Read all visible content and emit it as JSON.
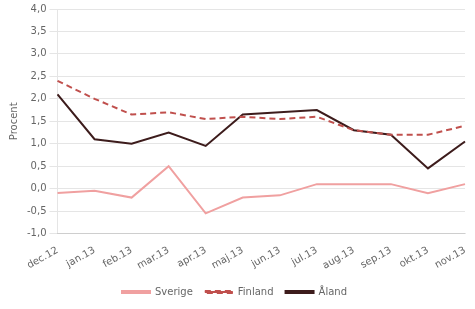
{
  "chart_data": {
    "type": "line",
    "ylabel": "Procent",
    "categories": [
      "dec.12",
      "jan.13",
      "feb.13",
      "mar.13",
      "apr.13",
      "maj.13",
      "jun.13",
      "jul.13",
      "aug.13",
      "sep.13",
      "okt.13",
      "nov.13"
    ],
    "series": [
      {
        "name": "Sverige",
        "color": "#f0a0a0",
        "line_style": "solid",
        "values": [
          -0.1,
          -0.05,
          -0.2,
          0.5,
          -0.55,
          -0.2,
          -0.15,
          0.1,
          0.1,
          0.1,
          -0.1,
          0.1
        ]
      },
      {
        "name": "Finland",
        "color": "#c0504d",
        "line_style": "dashed",
        "values": [
          2.4,
          2.0,
          1.65,
          1.7,
          1.55,
          1.6,
          1.55,
          1.6,
          1.3,
          1.2,
          1.2,
          1.4
        ]
      },
      {
        "name": "Åland",
        "color": "#3d1c1c",
        "line_style": "solid",
        "values": [
          2.1,
          1.1,
          1.0,
          1.25,
          0.95,
          1.65,
          1.7,
          1.75,
          1.3,
          1.2,
          0.45,
          1.05
        ]
      }
    ],
    "ylim": [
      -1.0,
      4.0
    ],
    "yticks": [
      {
        "value": -1.0,
        "label": "-1,0"
      },
      {
        "value": -0.5,
        "label": "-0,5"
      },
      {
        "value": 0.0,
        "label": "0,0"
      },
      {
        "value": 0.5,
        "label": "0,5"
      },
      {
        "value": 1.0,
        "label": "1,0"
      },
      {
        "value": 1.5,
        "label": "1,5"
      },
      {
        "value": 2.0,
        "label": "2,0"
      },
      {
        "value": 2.5,
        "label": "2,5"
      },
      {
        "value": 3.0,
        "label": "3,0"
      },
      {
        "value": 3.5,
        "label": "3,5"
      },
      {
        "value": 4.0,
        "label": "4,0"
      }
    ],
    "grid": "y",
    "legend": "bottom"
  }
}
